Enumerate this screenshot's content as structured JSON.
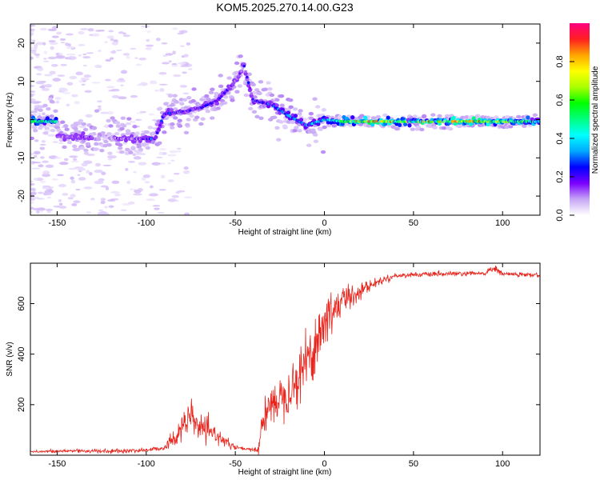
{
  "figure_title": "KOM5.2025.270.14.00.G23",
  "chart_data": [
    {
      "type": "heatmap",
      "title": "KOM5.2025.270.14.00.G23",
      "xlabel": "Height of straight line (km)",
      "ylabel": "Frequency (Hz)",
      "xlim": [
        -165,
        121
      ],
      "ylim": [
        -25,
        25
      ],
      "xticks": [
        -150,
        -100,
        -50,
        0,
        50,
        100
      ],
      "yticks": [
        -20,
        -10,
        0,
        10,
        20
      ],
      "colorbar": {
        "label": "Normalized spectral amplitude",
        "range": [
          0,
          1
        ],
        "ticks": [
          0.0,
          0.2,
          0.4,
          0.6,
          0.8
        ],
        "tick_labels": [
          "0.0",
          "0.2",
          "0.4",
          "0.6",
          "0.8"
        ],
        "colormap": [
          "#ffffff",
          "#c6a6f5",
          "#7a00ff",
          "#0000ff",
          "#00a8ff",
          "#00ffff",
          "#00ff7f",
          "#00ff00",
          "#aaff00",
          "#ffff00",
          "#ffa500",
          "#ff2020",
          "#ff0080"
        ]
      },
      "ridge": [
        {
          "x": -150,
          "y": -4.5,
          "amp": 0.12
        },
        {
          "x": -135,
          "y": -4.5,
          "amp": 0.12
        },
        {
          "x": -110,
          "y": -5,
          "amp": 0.1
        },
        {
          "x": -95,
          "y": -5,
          "amp": 0.2
        },
        {
          "x": -90,
          "y": 1.5,
          "amp": 0.22
        },
        {
          "x": -80,
          "y": 2,
          "amp": 0.2
        },
        {
          "x": -70,
          "y": 3,
          "amp": 0.2
        },
        {
          "x": -60,
          "y": 5,
          "amp": 0.2
        },
        {
          "x": -50,
          "y": 10,
          "amp": 0.15
        },
        {
          "x": -45,
          "y": 14,
          "amp": 0.12
        },
        {
          "x": -40,
          "y": 5,
          "amp": 0.2
        },
        {
          "x": -30,
          "y": 4,
          "amp": 0.25
        },
        {
          "x": -20,
          "y": 1,
          "amp": 0.3
        },
        {
          "x": -10,
          "y": -1.5,
          "amp": 0.3
        },
        {
          "x": 0,
          "y": 0,
          "amp": 0.35
        },
        {
          "x": 10,
          "y": -0.5,
          "amp": 0.5
        },
        {
          "x": 25,
          "y": -0.5,
          "amp": 0.85
        },
        {
          "x": 50,
          "y": -0.5,
          "amp": 0.5
        },
        {
          "x": 75,
          "y": -0.5,
          "amp": 0.7
        },
        {
          "x": 100,
          "y": -0.5,
          "amp": 0.6
        },
        {
          "x": 121,
          "y": -0.5,
          "amp": 0.5
        }
      ]
    },
    {
      "type": "line",
      "title": "",
      "xlabel": "Height of straight line (km)",
      "ylabel": "SNR (v/v)",
      "xlim": [
        -165,
        121
      ],
      "ylim": [
        0,
        760
      ],
      "xticks": [
        -150,
        -100,
        -50,
        0,
        50,
        100
      ],
      "yticks": [
        200,
        400,
        600
      ],
      "series": [
        {
          "name": "SNR",
          "color": "#e8241c",
          "x": [
            -165,
            -150,
            -140,
            -120,
            -100,
            -90,
            -85,
            -80,
            -75,
            -70,
            -65,
            -60,
            -55,
            -50,
            -45,
            -40,
            -37,
            -35,
            -30,
            -25,
            -20,
            -15,
            -10,
            -5,
            0,
            5,
            10,
            15,
            20,
            25,
            30,
            35,
            40,
            50,
            60,
            70,
            80,
            90,
            95,
            100,
            110,
            121
          ],
          "y": [
            15,
            15,
            18,
            15,
            20,
            30,
            60,
            110,
            150,
            110,
            90,
            80,
            50,
            30,
            25,
            20,
            25,
            130,
            200,
            230,
            260,
            300,
            380,
            440,
            520,
            580,
            610,
            630,
            650,
            670,
            685,
            700,
            710,
            715,
            715,
            718,
            718,
            720,
            740,
            718,
            715,
            712
          ],
          "noise": [
            4,
            6,
            8,
            6,
            8,
            10,
            30,
            45,
            50,
            40,
            35,
            25,
            15,
            8,
            6,
            6,
            20,
            50,
            60,
            65,
            80,
            90,
            110,
            110,
            100,
            80,
            55,
            40,
            30,
            20,
            12,
            10,
            8,
            8,
            8,
            8,
            8,
            8,
            12,
            8,
            8,
            8
          ]
        }
      ]
    }
  ]
}
